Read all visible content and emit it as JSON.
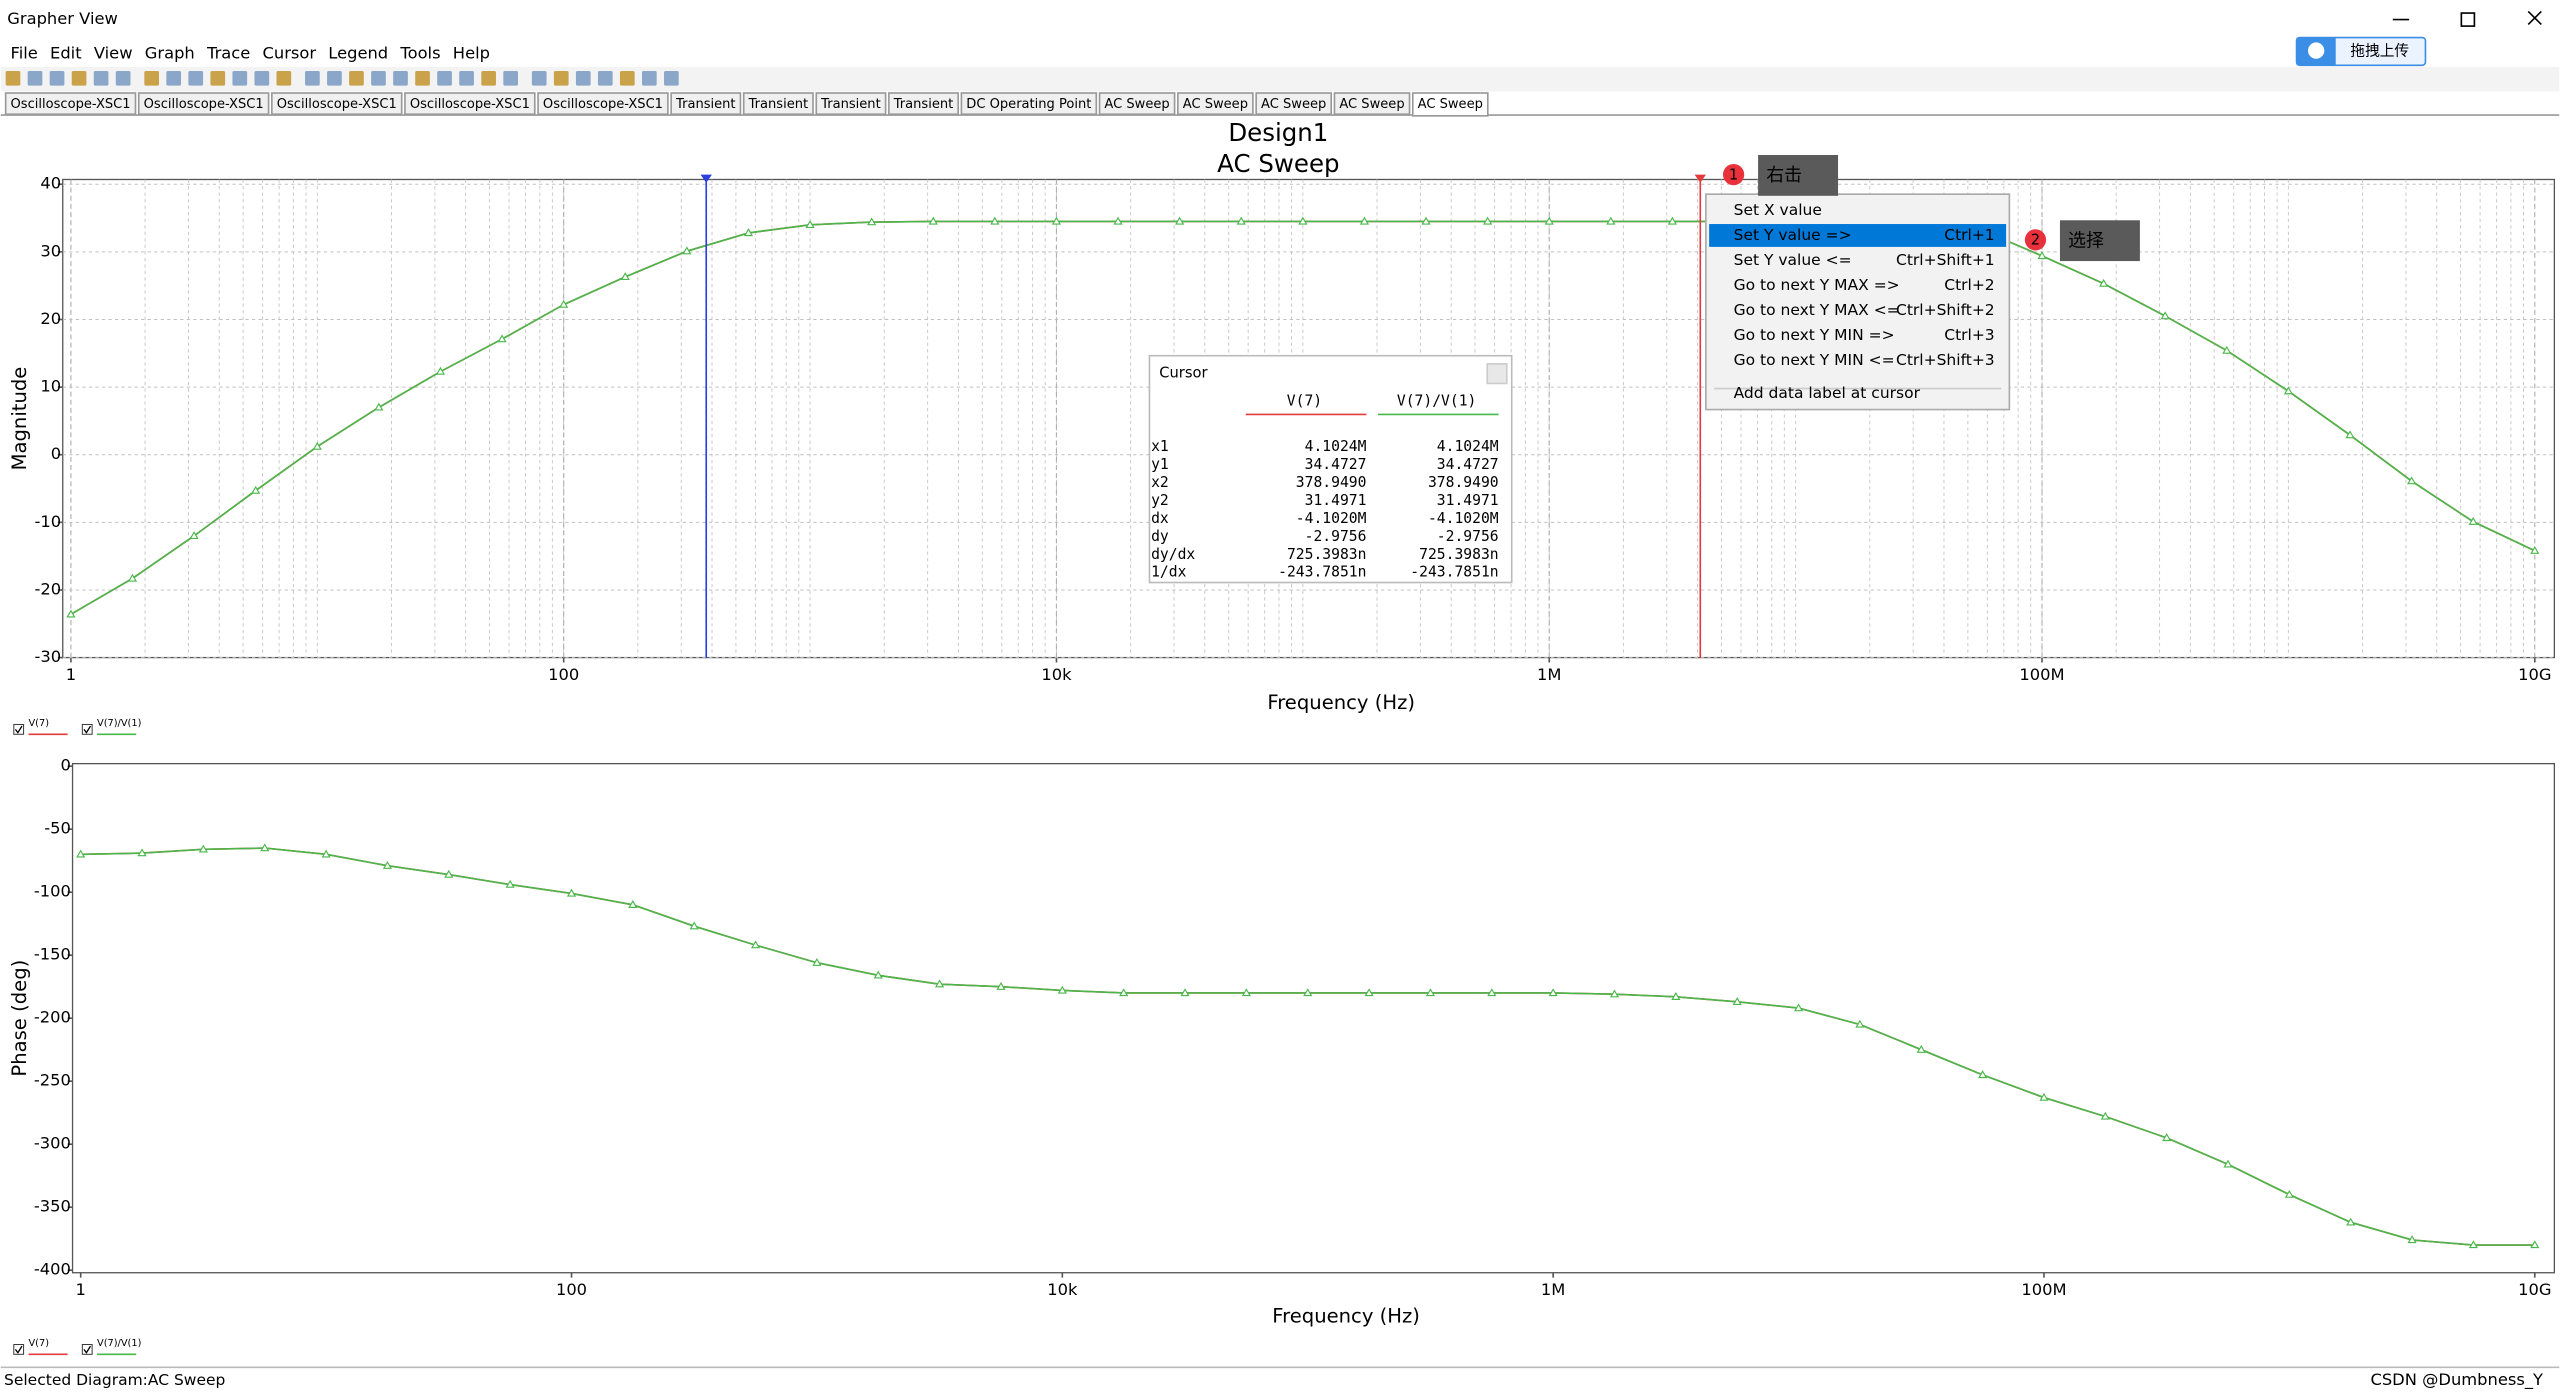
{
  "window": {
    "title": "Grapher View"
  },
  "menu": [
    "File",
    "Edit",
    "View",
    "Graph",
    "Trace",
    "Cursor",
    "Legend",
    "Tools",
    "Help"
  ],
  "upload_button": "拖拽上传",
  "tabs": [
    "Oscilloscope-XSC1",
    "Oscilloscope-XSC1",
    "Oscilloscope-XSC1",
    "Oscilloscope-XSC1",
    "Oscilloscope-XSC1",
    "Transient",
    "Transient",
    "Transient",
    "Transient",
    "DC Operating Point",
    "AC Sweep",
    "AC Sweep",
    "AC Sweep",
    "AC Sweep",
    "AC Sweep"
  ],
  "chart_data": [
    {
      "type": "line",
      "title": "Design1",
      "subtitle": "AC Sweep",
      "x_label": "Frequency (Hz)",
      "y_label": "Magnitude",
      "xscale": "log",
      "xlim": [
        1,
        10000000000
      ],
      "xticks": [
        1,
        100,
        {
          "value": 10000,
          "label": "10k"
        },
        {
          "value": 1000000,
          "label": "1M"
        },
        {
          "value": 100000000,
          "label": "100M"
        },
        {
          "value": 10000000000,
          "label": "10G"
        }
      ],
      "ylim": [
        -30,
        40.7
      ],
      "yticks": [
        -30,
        -20,
        -10,
        0,
        10,
        20,
        30,
        40
      ],
      "grid": true,
      "x": [
        1,
        1.778,
        3.162,
        5.623,
        10,
        17.78,
        31.62,
        56.23,
        100,
        177.8,
        316.2,
        562.3,
        1000,
        1778,
        3162,
        5623,
        10000,
        17783,
        31623,
        56234,
        100000,
        177828,
        316228,
        562341,
        1000000,
        1778279,
        3162278,
        5623413,
        10000000,
        17782794,
        31622777,
        56234133,
        100000000,
        177827941,
        316227766,
        562341325,
        1000000000,
        1778279410,
        3162277660,
        5623413252,
        10000000000
      ],
      "series": [
        {
          "name": "V(7)",
          "color": "#e23b3b",
          "values": [
            -23.6,
            -18.3,
            -12,
            -5.3,
            1.2,
            7,
            12.3,
            17.1,
            22.2,
            26.3,
            30.1,
            32.8,
            34,
            34.4,
            34.5,
            34.5,
            34.5,
            34.5,
            34.5,
            34.5,
            34.5,
            34.5,
            34.5,
            34.5,
            34.5,
            34.5,
            34.5,
            34.5,
            34.5,
            34.4,
            34.2,
            33.3,
            29.4,
            25.3,
            20.5,
            15.4,
            9.4,
            2.9,
            -3.9,
            -9.9,
            -14.2
          ]
        },
        {
          "name": "V(7)/V(1)",
          "color": "#49b84a",
          "values": [
            -23.6,
            -18.3,
            -12,
            -5.3,
            1.2,
            7,
            12.3,
            17.1,
            22.2,
            26.3,
            30.1,
            32.8,
            34,
            34.4,
            34.5,
            34.5,
            34.5,
            34.5,
            34.5,
            34.5,
            34.5,
            34.5,
            34.5,
            34.5,
            34.5,
            34.5,
            34.5,
            34.5,
            34.5,
            34.4,
            34.2,
            33.3,
            29.4,
            25.3,
            20.5,
            15.4,
            9.4,
            2.9,
            -3.9,
            -9.9,
            -14.2
          ]
        }
      ],
      "cursors": [
        {
          "x": 378.949,
          "color": "#2b3fe0"
        },
        {
          "x": 4102400,
          "color": "#e23b3b"
        }
      ]
    },
    {
      "type": "line",
      "x_label": "Frequency (Hz)",
      "y_label": "Phase (deg)",
      "xscale": "log",
      "xlim": [
        1,
        10000000000
      ],
      "xticks": [
        1,
        100,
        {
          "value": 10000,
          "label": "10k"
        },
        {
          "value": 1000000,
          "label": "1M"
        },
        {
          "value": 100000000,
          "label": "100M"
        },
        {
          "value": 10000000000,
          "label": "10G"
        }
      ],
      "ylim": [
        -402,
        2
      ],
      "yticks": [
        -400,
        -350,
        -300,
        -250,
        -200,
        -150,
        -100,
        -50,
        0
      ],
      "grid": false,
      "x": [
        1,
        1.778,
        3.162,
        5.623,
        10,
        17.78,
        31.62,
        56.23,
        100,
        177.8,
        316.2,
        562.3,
        1000,
        1778,
        3162,
        5623,
        10000,
        17783,
        31623,
        56234,
        100000,
        177828,
        316228,
        562341,
        1000000,
        1778279,
        3162278,
        5623413,
        10000000,
        17782794,
        31622777,
        56234133,
        100000000,
        177827941,
        316227766,
        562341325,
        1000000000,
        1778279410,
        3162277660,
        5623413252,
        10000000000
      ],
      "series": [
        {
          "name": "V(7)",
          "color": "#e23b3b",
          "values": [
            -70,
            -69,
            -66,
            -65,
            -70,
            -79,
            -86,
            -94,
            -101,
            -110,
            -127,
            -142,
            -156,
            -166,
            -173,
            -175,
            -178,
            -180,
            -180,
            -180,
            -180,
            -180,
            -180,
            -180,
            -180,
            -181,
            -183,
            -187,
            -192,
            -205,
            -225,
            -245,
            -263,
            -278,
            -295,
            -316,
            -340,
            -362,
            -376,
            -380,
            -380
          ]
        },
        {
          "name": "V(7)/V(1)",
          "color": "#49b84a",
          "values": [
            -70,
            -69,
            -66,
            -65,
            -70,
            -79,
            -86,
            -94,
            -101,
            -110,
            -127,
            -142,
            -156,
            -166,
            -173,
            -175,
            -178,
            -180,
            -180,
            -180,
            -180,
            -180,
            -180,
            -180,
            -180,
            -181,
            -183,
            -187,
            -192,
            -205,
            -225,
            -245,
            -263,
            -278,
            -295,
            -316,
            -340,
            -362,
            -376,
            -380,
            -380
          ]
        }
      ]
    }
  ],
  "cursor_panel": {
    "title": "Cursor",
    "columns": [
      "V(7)",
      "V(7)/V(1)"
    ],
    "rows": [
      [
        "x1",
        "4.1024M",
        "4.1024M"
      ],
      [
        "y1",
        "34.4727",
        "34.4727"
      ],
      [
        "x2",
        "378.9490",
        "378.9490"
      ],
      [
        "y2",
        "31.4971",
        "31.4971"
      ],
      [
        "dx",
        "-4.1020M",
        "-4.1020M"
      ],
      [
        "dy",
        "-2.9756",
        "-2.9756"
      ],
      [
        "dy/dx",
        "725.3983n",
        "725.3983n"
      ],
      [
        "1/dx",
        "-243.7851n",
        "-243.7851n"
      ]
    ]
  },
  "context_menu": [
    {
      "label": "Set X value"
    },
    {
      "label": "Set Y value =>",
      "shortcut": "Ctrl+1",
      "selected": true
    },
    {
      "label": "Set Y value <=",
      "shortcut": "Ctrl+Shift+1"
    },
    {
      "label": "Go to next Y MAX =>",
      "shortcut": "Ctrl+2"
    },
    {
      "label": "Go to next Y MAX <=",
      "shortcut": "Ctrl+Shift+2"
    },
    {
      "label": "Go to next Y MIN =>",
      "shortcut": "Ctrl+3"
    },
    {
      "label": "Go to next Y MIN <=",
      "shortcut": "Ctrl+Shift+3"
    },
    {
      "label": "Add data label at cursor",
      "separator_before": true
    }
  ],
  "callouts": [
    {
      "number": 1,
      "text": "右击"
    },
    {
      "number": 2,
      "text": "选择"
    }
  ],
  "status": "Selected Diagram:AC Sweep",
  "watermark": "CSDN @Dumbness_Y"
}
